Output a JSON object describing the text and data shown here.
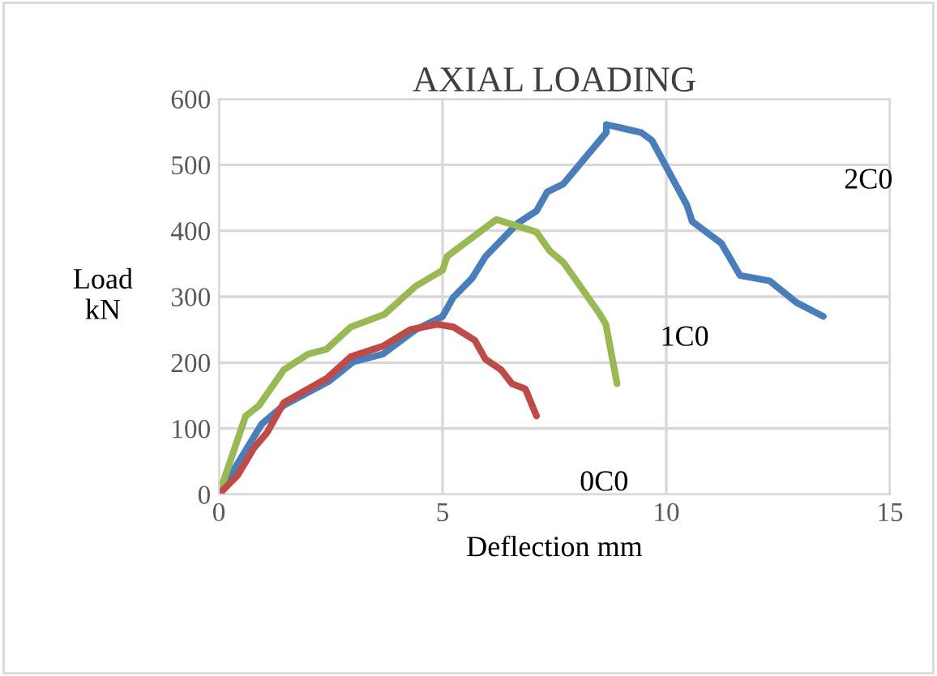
{
  "chart_data": {
    "type": "line",
    "title": "AXIAL LOADING",
    "xlabel": "Deflection mm",
    "ylabel": "Load\nkN",
    "xlim": [
      0,
      15
    ],
    "xticks": [
      0,
      5,
      10,
      15
    ],
    "ylim": [
      0,
      600
    ],
    "yticks": [
      0,
      100,
      200,
      300,
      400,
      500,
      600
    ],
    "grid": true,
    "legend": false,
    "marker": "none",
    "line_style": "solid",
    "series": [
      {
        "name": "2C0",
        "color": "#4a7ebb",
        "x": [
          0,
          0.96,
          1.45,
          2.47,
          3.0,
          3.67,
          4.4,
          5.0,
          5.24,
          5.66,
          5.96,
          6.69,
          7.1,
          7.34,
          7.7,
          8.66,
          8.66,
          9.44,
          9.68,
          10.46,
          10.58,
          11.23,
          11.65,
          12.31,
          12.91,
          13.51
        ],
        "values": [
          0,
          107,
          135,
          172,
          201,
          213,
          250,
          270,
          299,
          328,
          361,
          412,
          430,
          459,
          471,
          549,
          561,
          549,
          537,
          439,
          414,
          381,
          332,
          324,
          291,
          270
        ]
      },
      {
        "name": "1C0",
        "color": "#98b954",
        "x": [
          0,
          0.6,
          0.9,
          1.45,
          2.0,
          2.4,
          2.95,
          3.7,
          4.4,
          5.0,
          5.1,
          6.2,
          7.1,
          7.4,
          7.7,
          8.5,
          8.65,
          8.9
        ],
        "values": [
          0,
          119,
          135,
          189,
          213,
          220,
          254,
          273,
          316,
          340,
          361,
          417,
          398,
          369,
          352,
          275,
          258,
          168
        ]
      },
      {
        "name": "0C0",
        "color": "#be4b48",
        "x": [
          0,
          0.42,
          0.78,
          1.08,
          1.45,
          2.41,
          2.95,
          3.67,
          4.28,
          4.88,
          5.24,
          5.72,
          5.96,
          6.31,
          6.55,
          6.85,
          7.1
        ],
        "values": [
          0,
          29,
          70,
          94,
          139,
          176,
          209,
          225,
          250,
          258,
          254,
          234,
          205,
          189,
          168,
          160,
          119
        ]
      }
    ]
  }
}
